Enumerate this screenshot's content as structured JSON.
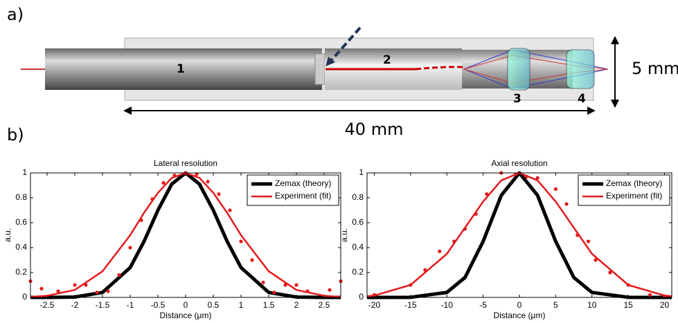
{
  "panel_a": {
    "label": "a)",
    "parts": [
      "1",
      "2",
      "3",
      "4"
    ],
    "height_label": "5 mm",
    "length_label": "40 mm"
  },
  "panel_b": {
    "label": "b)"
  },
  "chart_data": [
    {
      "type": "line",
      "title": "Lateral resolution",
      "x_label": "Distance (μm)",
      "y_label": "a.u.",
      "xlim": [
        -2.8,
        2.8
      ],
      "xticks": [
        -2.5,
        -2,
        -1.5,
        -1,
        -0.5,
        0,
        0.5,
        1,
        1.5,
        2,
        2.5
      ],
      "ylim": [
        0,
        1
      ],
      "yticks": [
        0,
        0.2,
        0.4,
        0.6,
        0.8,
        1
      ],
      "legend": "upper-right",
      "series": [
        {
          "name": "Zemax (theory)",
          "color": "#000000",
          "mode": "line",
          "width": 5,
          "x": [
            -2.8,
            -2.5,
            -2,
            -1.5,
            -1,
            -0.75,
            -0.5,
            -0.25,
            0,
            0.25,
            0.5,
            0.75,
            1,
            1.5,
            2,
            2.5,
            2.8
          ],
          "values": [
            0,
            0,
            0.003,
            0.04,
            0.24,
            0.45,
            0.7,
            0.91,
            1,
            0.91,
            0.7,
            0.45,
            0.24,
            0.04,
            0.003,
            0,
            0
          ]
        },
        {
          "name": "Experiment (fit)",
          "color": "#e41a1c",
          "mode": "line",
          "width": 2.5,
          "x": [
            -2.8,
            -2.5,
            -2,
            -1.5,
            -1,
            -0.75,
            -0.5,
            -0.25,
            0,
            0.25,
            0.5,
            0.75,
            1,
            1.5,
            2,
            2.5,
            2.8
          ],
          "values": [
            0.004,
            0.013,
            0.06,
            0.21,
            0.5,
            0.68,
            0.84,
            0.96,
            1,
            0.96,
            0.84,
            0.68,
            0.5,
            0.21,
            0.06,
            0.013,
            0.004
          ]
        },
        {
          "color": "#e41a1c",
          "mode": "markers",
          "x": [
            -2.8,
            -2.6,
            -2.3,
            -2,
            -1.8,
            -1.6,
            -1.4,
            -1.2,
            -1,
            -0.8,
            -0.6,
            -0.4,
            -0.2,
            0,
            0.2,
            0.4,
            0.6,
            0.8,
            1,
            1.2,
            1.4,
            1.6,
            1.8,
            2,
            2.2,
            2.6,
            2.8
          ],
          "values": [
            0.13,
            0.07,
            0.05,
            0.1,
            0.1,
            0.04,
            0.05,
            0.18,
            0.4,
            0.62,
            0.79,
            0.92,
            0.98,
            1,
            0.99,
            0.93,
            0.83,
            0.7,
            0.45,
            0.3,
            0.12,
            0.04,
            0.1,
            0.1,
            0.05,
            0.06,
            0.13
          ]
        }
      ]
    },
    {
      "type": "line",
      "title": "Axial resolution",
      "x_label": "Distance (μm)",
      "y_label": "a.u.",
      "xlim": [
        -21,
        21
      ],
      "xticks": [
        -20,
        -15,
        -10,
        -5,
        0,
        5,
        10,
        15,
        20
      ],
      "ylim": [
        0,
        1
      ],
      "yticks": [
        0,
        0.2,
        0.4,
        0.6,
        0.8,
        1
      ],
      "legend": "upper-right",
      "series": [
        {
          "name": "Zemax (theory)",
          "color": "#000000",
          "mode": "line",
          "width": 5,
          "x": [
            -21,
            -20,
            -15,
            -10,
            -7.5,
            -5,
            -2.5,
            0,
            2.5,
            5,
            7.5,
            10,
            15,
            20,
            21
          ],
          "values": [
            0,
            0,
            0.001,
            0.04,
            0.16,
            0.45,
            0.82,
            1,
            0.82,
            0.45,
            0.16,
            0.04,
            0.001,
            0,
            0
          ]
        },
        {
          "name": "Experiment (fit)",
          "color": "#e41a1c",
          "mode": "line",
          "width": 2.5,
          "x": [
            -21,
            -20,
            -15,
            -10,
            -7.5,
            -5,
            -2.5,
            0,
            2.5,
            5,
            7.5,
            10,
            15,
            20,
            21
          ],
          "values": [
            0.01,
            0.015,
            0.1,
            0.35,
            0.56,
            0.77,
            0.94,
            1,
            0.94,
            0.77,
            0.56,
            0.35,
            0.1,
            0.015,
            0.01
          ]
        },
        {
          "color": "#e41a1c",
          "mode": "markers",
          "x": [
            -20,
            -15,
            -13,
            -11,
            -9,
            -7.5,
            -6,
            -4.5,
            -2.5,
            -0.5,
            1,
            2.5,
            5,
            6.5,
            8,
            9.5,
            10.5,
            12.5,
            15,
            18,
            20
          ],
          "values": [
            0.02,
            0.1,
            0.22,
            0.37,
            0.45,
            0.55,
            0.67,
            0.83,
            1,
            0.99,
            0.97,
            0.96,
            0.87,
            0.75,
            0.5,
            0.45,
            0.3,
            0.2,
            0.1,
            0.02,
            0.01
          ]
        }
      ]
    }
  ]
}
